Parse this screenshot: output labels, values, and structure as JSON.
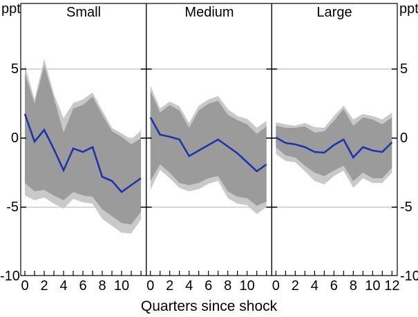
{
  "figure": {
    "y_unit_left": "ppt",
    "y_unit_right": "ppt",
    "x_axis_title": "Quarters since shock",
    "y_tick_labels": [
      "5",
      "0",
      "-5",
      "-10"
    ],
    "colors": {
      "median_line": "#1c34ab",
      "inner_band": "#9b9b9b",
      "outer_band": "#c9c9c9",
      "gridline": "#b3b3b3",
      "axis": "#000000",
      "background": "#ffffff"
    }
  },
  "chart_data": {
    "type": "line",
    "subtype": "impulse-response-small-multiples-with-confidence-bands",
    "title": "",
    "xlabel": "Quarters since shock",
    "ylabel_unit": "ppt",
    "x": [
      0,
      1,
      2,
      3,
      4,
      5,
      6,
      7,
      8,
      9,
      10,
      11,
      12
    ],
    "ylim": [
      -10,
      9.75
    ],
    "y_ticks": [
      5,
      0,
      -5,
      -10
    ],
    "gridlines_at": [
      5,
      0,
      -5
    ],
    "legend": "none",
    "panels": [
      {
        "title": "Small",
        "x_tick_labels": [
          "0",
          "2",
          "4",
          "6",
          "8",
          "10"
        ],
        "x_tick_values": [
          0,
          2,
          4,
          6,
          8,
          10
        ],
        "median": [
          1.75,
          -0.25,
          0.6,
          -0.8,
          -2.33,
          -0.75,
          -1.0,
          -0.65,
          -2.8,
          -3.1,
          -3.9,
          -3.4,
          -2.9
        ],
        "inner_band_hi": [
          4.7,
          2.5,
          5.25,
          2.9,
          0.4,
          2.15,
          2.4,
          3.0,
          1.7,
          0.5,
          0.1,
          -0.45,
          0.0
        ],
        "inner_band_lo": [
          -3.25,
          -3.85,
          -3.75,
          -4.15,
          -4.5,
          -3.9,
          -4.15,
          -4.25,
          -5.15,
          -5.65,
          -6.15,
          -6.25,
          -5.35
        ],
        "outer_band_hi": [
          5.3,
          2.8,
          5.75,
          3.2,
          1.45,
          2.55,
          2.8,
          3.3,
          2.0,
          0.75,
          0.35,
          -0.1,
          0.55
        ],
        "outer_band_lo": [
          -4.15,
          -4.5,
          -4.3,
          -4.75,
          -5.1,
          -4.4,
          -4.65,
          -4.75,
          -5.85,
          -6.35,
          -6.85,
          -6.9,
          -5.9
        ]
      },
      {
        "title": "Medium",
        "x_tick_labels": [
          "0",
          "2",
          "4",
          "6",
          "8",
          "10"
        ],
        "x_tick_values": [
          0,
          2,
          4,
          6,
          8,
          10
        ],
        "median": [
          1.5,
          0.25,
          0.1,
          -0.1,
          -1.3,
          -0.9,
          -0.5,
          -0.1,
          -0.6,
          -1.1,
          -1.75,
          -2.4,
          -1.9
        ],
        "inner_band_hi": [
          3.4,
          1.85,
          2.4,
          2.0,
          0.75,
          2.0,
          2.5,
          2.7,
          1.7,
          1.3,
          1.0,
          0.3,
          0.85
        ],
        "inner_band_lo": [
          -3.1,
          -1.9,
          -2.5,
          -3.25,
          -3.4,
          -3.25,
          -2.9,
          -2.75,
          -3.85,
          -4.25,
          -4.35,
          -4.9,
          -4.6
        ],
        "outer_band_hi": [
          3.8,
          2.15,
          2.65,
          2.3,
          1.1,
          2.35,
          2.8,
          3.05,
          2.1,
          1.6,
          1.4,
          0.75,
          1.25
        ],
        "outer_band_lo": [
          -3.75,
          -2.3,
          -2.9,
          -3.6,
          -3.85,
          -3.7,
          -3.3,
          -3.1,
          -4.35,
          -4.75,
          -4.85,
          -5.5,
          -5.0
        ]
      },
      {
        "title": "Large",
        "x_tick_labels": [
          "0",
          "2",
          "4",
          "6",
          "8",
          "10",
          "12"
        ],
        "x_tick_values": [
          0,
          2,
          4,
          6,
          8,
          10,
          12
        ],
        "median": [
          0.05,
          -0.35,
          -0.45,
          -0.65,
          -1.0,
          -1.05,
          -0.5,
          -0.1,
          -1.4,
          -0.65,
          -0.9,
          -1.0,
          -0.3
        ],
        "inner_band_hi": [
          0.9,
          0.75,
          0.75,
          0.85,
          0.4,
          0.5,
          1.25,
          2.1,
          0.9,
          1.5,
          1.35,
          1.0,
          1.5
        ],
        "inner_band_lo": [
          -0.65,
          -1.25,
          -1.4,
          -2.0,
          -2.5,
          -2.75,
          -2.35,
          -2.0,
          -3.1,
          -2.5,
          -2.9,
          -2.9,
          -2.15
        ],
        "outer_band_hi": [
          1.15,
          1.0,
          0.9,
          1.1,
          0.8,
          0.75,
          1.6,
          2.35,
          1.35,
          1.75,
          1.6,
          1.35,
          1.85
        ],
        "outer_band_lo": [
          -1.15,
          -1.65,
          -1.75,
          -2.4,
          -3.1,
          -3.35,
          -2.75,
          -2.35,
          -3.6,
          -2.9,
          -3.25,
          -3.25,
          -2.5
        ]
      }
    ]
  }
}
